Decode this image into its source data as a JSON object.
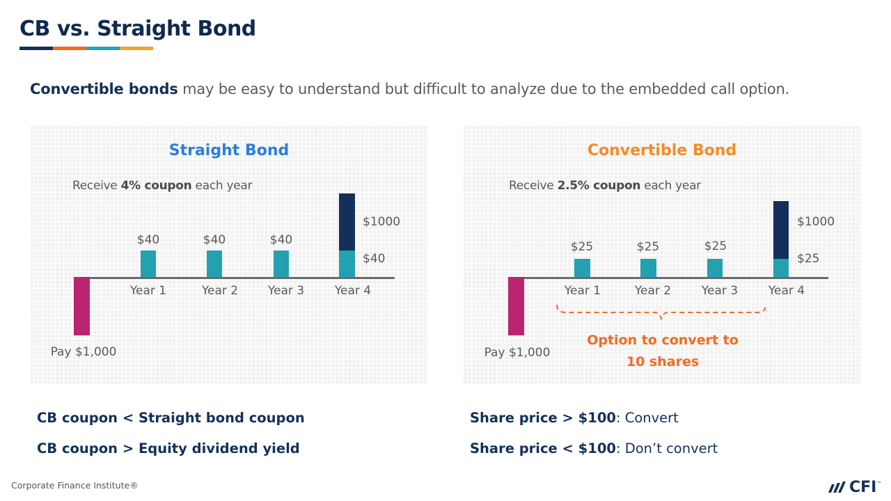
{
  "page": {
    "title": "CB vs. Straight Bond",
    "title_colors": [
      "#14305a",
      "#f26b21",
      "#23a6b4",
      "#f6a12a"
    ],
    "subtitle_bold": "Convertible bonds",
    "subtitle_rest": " may be easy to understand but difficult to analyze due to the embedded call option."
  },
  "straight": {
    "title": "Straight Bond",
    "title_color": "#2f7ed8",
    "note_pre": "Receive ",
    "note_bold": "4% coupon",
    "note_post": " each year",
    "coupon_label": "$40",
    "principal_label": "$1000",
    "final_coupon_label": "$40",
    "years": [
      "Year 1",
      "Year 2",
      "Year 3",
      "Year 4"
    ],
    "pay_label": "Pay $1,000"
  },
  "convertible": {
    "title": "Convertible Bond",
    "title_color": "#f28c28",
    "note_pre": "Receive ",
    "note_bold": "2.5% coupon",
    "note_post": " each year",
    "coupon_label": "$25",
    "principal_label": "$1000",
    "final_coupon_label": "$25",
    "years": [
      "Year 1",
      "Year 2",
      "Year 3",
      "Year 4"
    ],
    "pay_label": "Pay $1,000",
    "option_line1": "Option to convert to",
    "option_line2": "10 shares"
  },
  "rules": {
    "left1": "CB coupon < Straight bond coupon",
    "left2": "CB coupon > Equity dividend  yield",
    "right1_bold": "Share price > $100",
    "right1_rest": ": Convert",
    "right2_bold": "Share price < $100",
    "right2_rest": ": Don’t convert"
  },
  "colors": {
    "teal": "#23a1b1",
    "navy": "#14305a",
    "magenta": "#b8256e",
    "orange": "#f26b21"
  },
  "footer": {
    "text": "Corporate Finance Institute®",
    "logo": "CFI",
    "logo_tm": "™"
  }
}
